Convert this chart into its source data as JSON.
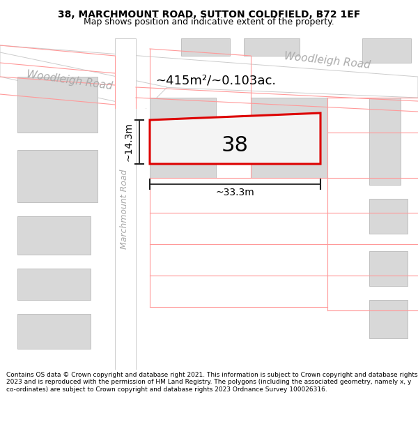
{
  "title_line1": "38, MARCHMOUNT ROAD, SUTTON COLDFIELD, B72 1EF",
  "title_line2": "Map shows position and indicative extent of the property.",
  "footer_text": "Contains OS data © Crown copyright and database right 2021. This information is subject to Crown copyright and database rights 2023 and is reproduced with the permission of HM Land Registry. The polygons (including the associated geometry, namely x, y co-ordinates) are subject to Crown copyright and database rights 2023 Ordnance Survey 100026316.",
  "property_number": "38",
  "area_text": "~415m²/~0.103ac.",
  "width_text": "~33.3m",
  "height_text": "~14.3m",
  "road_label_top_right": "Woodleigh Road",
  "road_label_left": "Woodleigh Road",
  "road_label_vert": "Marchmount Road",
  "title_fontsize": 10,
  "subtitle_fontsize": 9,
  "footer_fontsize": 6.5,
  "map_bg": "#ffffff",
  "road_bg": "#f0f0f0",
  "building_fill": "#d8d8d8",
  "building_edge": "#c0c0c0",
  "road_fill": "#e8e8e8",
  "road_edge": "#cccccc",
  "prop_edge": "#dd0000",
  "prop_fill": "#f4f4f4",
  "red_line": "#ff9999",
  "road_label_color": "#aaaaaa",
  "meas_color": "#222222"
}
